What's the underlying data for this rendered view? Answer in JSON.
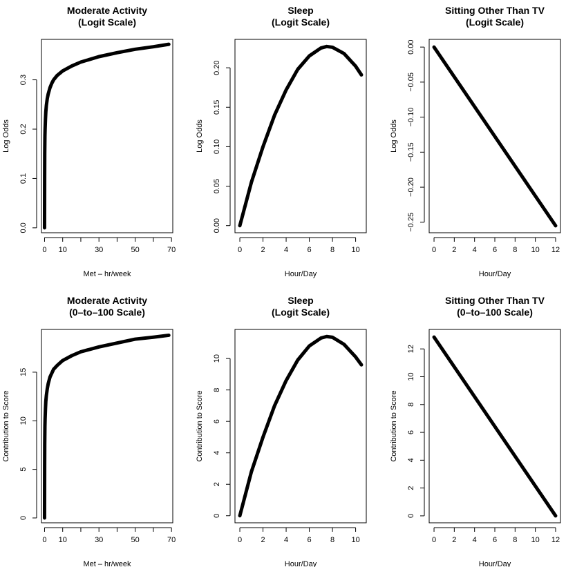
{
  "chart_data": [
    {
      "type": "line",
      "title": [
        "Moderate Activity",
        "(Logit Scale)"
      ],
      "xlabel": "Met – hr/week",
      "ylabel": "Log Odds",
      "xlim": [
        -1.7,
        70.7
      ],
      "ylim": [
        -0.01,
        0.382
      ],
      "xticks": [
        0,
        10,
        30,
        50,
        70
      ],
      "xminor": [
        20,
        40,
        60
      ],
      "yticks": [
        0.0,
        0.1,
        0.2,
        0.3
      ],
      "yticklabels": [
        "0.0",
        "0.1",
        "0.2",
        "0.3"
      ],
      "series": [
        {
          "x": [
            0,
            0.05,
            0.1,
            0.2,
            0.3,
            0.5,
            0.7,
            1,
            1.5,
            2,
            3,
            4,
            5,
            7,
            10,
            15,
            20,
            30,
            40,
            50,
            60,
            68.5
          ],
          "y": [
            0,
            0.1,
            0.15,
            0.185,
            0.2,
            0.22,
            0.235,
            0.248,
            0.262,
            0.271,
            0.284,
            0.293,
            0.3,
            0.309,
            0.318,
            0.328,
            0.336,
            0.347,
            0.355,
            0.362,
            0.367,
            0.372
          ]
        }
      ]
    },
    {
      "type": "line",
      "title": [
        "Sleep",
        "(Logit Scale)"
      ],
      "xlabel": "Hour/Day",
      "ylabel": "Log Odds",
      "xlim": [
        -0.42,
        10.92
      ],
      "ylim": [
        -0.009,
        0.236
      ],
      "xticks": [
        0,
        2,
        4,
        6,
        8,
        10
      ],
      "yticks": [
        0.0,
        0.05,
        0.1,
        0.15,
        0.2
      ],
      "yticklabels": [
        "0.00",
        "0.05",
        "0.10",
        "0.15",
        "0.20"
      ],
      "series": [
        {
          "x": [
            0,
            1,
            2,
            3,
            4,
            5,
            6,
            7,
            7.5,
            8,
            9,
            10,
            10.5
          ],
          "y": [
            0,
            0.055,
            0.1,
            0.14,
            0.172,
            0.198,
            0.215,
            0.225,
            0.227,
            0.226,
            0.218,
            0.202,
            0.191
          ]
        }
      ]
    },
    {
      "type": "line",
      "title": [
        "Sitting Other Than TV",
        "(Logit Scale)"
      ],
      "xlabel": "Hour/Day",
      "ylabel": "Log Odds",
      "xlim": [
        -0.48,
        12.48
      ],
      "ylim": [
        -0.265,
        0.011
      ],
      "xticks": [
        0,
        2,
        4,
        6,
        8,
        10,
        12
      ],
      "yticks": [
        0.0,
        -0.05,
        -0.1,
        -0.15,
        -0.2,
        -0.25
      ],
      "yticklabels": [
        "0.00",
        "−0.05",
        "−0.10",
        "−0.15",
        "−0.20",
        "−0.25"
      ],
      "series": [
        {
          "x": [
            0,
            12
          ],
          "y": [
            0,
            -0.255
          ]
        }
      ]
    },
    {
      "type": "line",
      "title": [
        "Moderate Activity",
        "(0–to–100 Scale)"
      ],
      "xlabel": "Met – hr/week",
      "ylabel": "Contribution to Score",
      "xlim": [
        -1.7,
        70.7
      ],
      "ylim": [
        -0.5,
        19.4
      ],
      "xticks": [
        0,
        10,
        30,
        50,
        70
      ],
      "xminor": [
        20,
        40,
        60
      ],
      "yticks": [
        0,
        5,
        10,
        15
      ],
      "yticklabels": [
        "0",
        "5",
        "10",
        "15"
      ],
      "series": [
        {
          "x": [
            0,
            0.05,
            0.1,
            0.2,
            0.3,
            0.5,
            0.7,
            1,
            1.5,
            2,
            3,
            4,
            5,
            7,
            10,
            15,
            20,
            30,
            40,
            50,
            60,
            68.5
          ],
          "y": [
            0,
            5.1,
            7.6,
            9.4,
            10.2,
            11.2,
            12.0,
            12.6,
            13.3,
            13.8,
            14.5,
            14.9,
            15.3,
            15.7,
            16.2,
            16.7,
            17.1,
            17.6,
            18.0,
            18.4,
            18.6,
            18.8
          ]
        }
      ]
    },
    {
      "type": "line",
      "title": [
        "Sleep",
        "(Logit Scale)"
      ],
      "xlabel": "Hour/Day",
      "ylabel": "Contribution to Score",
      "xlim": [
        -0.42,
        10.92
      ],
      "ylim": [
        -0.45,
        11.85
      ],
      "xticks": [
        0,
        2,
        4,
        6,
        8,
        10
      ],
      "yticks": [
        0,
        2,
        4,
        6,
        8,
        10
      ],
      "yticklabels": [
        "0",
        "2",
        "4",
        "6",
        "8",
        "10"
      ],
      "series": [
        {
          "x": [
            0,
            1,
            2,
            3,
            4,
            5,
            6,
            7,
            7.5,
            8,
            9,
            10,
            10.5
          ],
          "y": [
            0,
            2.8,
            5.0,
            7.0,
            8.6,
            9.9,
            10.8,
            11.3,
            11.4,
            11.35,
            10.9,
            10.1,
            9.6
          ]
        }
      ]
    },
    {
      "type": "line",
      "title": [
        "Sitting Other Than TV",
        "(0–to–100 Scale)"
      ],
      "xlabel": "Hour/Day",
      "ylabel": "Contribution to Score",
      "xlim": [
        -0.48,
        12.48
      ],
      "ylim": [
        -0.5,
        13.4
      ],
      "xticks": [
        0,
        2,
        4,
        6,
        8,
        10,
        12
      ],
      "yticks": [
        0,
        2,
        4,
        6,
        8,
        10,
        12
      ],
      "yticklabels": [
        "0",
        "2",
        "4",
        "6",
        "8",
        "10",
        "12"
      ],
      "series": [
        {
          "x": [
            0,
            12
          ],
          "y": [
            12.85,
            0
          ]
        }
      ]
    }
  ]
}
